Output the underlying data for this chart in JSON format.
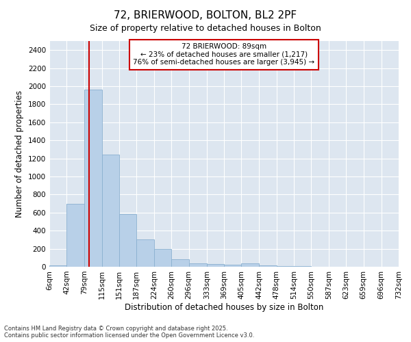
{
  "title": "72, BRIERWOOD, BOLTON, BL2 2PF",
  "subtitle": "Size of property relative to detached houses in Bolton",
  "xlabel": "Distribution of detached houses by size in Bolton",
  "ylabel": "Number of detached properties",
  "bar_color": "#b8d0e8",
  "bar_edge_color": "#8ab0d0",
  "vline_x": 89,
  "vline_color": "#cc0000",
  "annotation_title": "72 BRIERWOOD: 89sqm",
  "annotation_line2": "← 23% of detached houses are smaller (1,217)",
  "annotation_line3": "76% of semi-detached houses are larger (3,945) →",
  "annotation_box_color": "#cc0000",
  "footer": "Contains HM Land Registry data © Crown copyright and database right 2025.\nContains public sector information licensed under the Open Government Licence v3.0.",
  "bin_edges": [
    6,
    42,
    79,
    115,
    151,
    187,
    224,
    260,
    296,
    333,
    369,
    405,
    442,
    478,
    514,
    550,
    587,
    623,
    659,
    696,
    732
  ],
  "bin_labels": [
    "6sqm",
    "42sqm",
    "79sqm",
    "115sqm",
    "151sqm",
    "187sqm",
    "224sqm",
    "260sqm",
    "296sqm",
    "333sqm",
    "369sqm",
    "405sqm",
    "442sqm",
    "478sqm",
    "514sqm",
    "550sqm",
    "587sqm",
    "623sqm",
    "659sqm",
    "696sqm",
    "732sqm"
  ],
  "values": [
    15,
    700,
    1960,
    1240,
    580,
    305,
    200,
    80,
    40,
    30,
    25,
    35,
    15,
    5,
    5,
    3,
    2,
    1,
    1,
    0
  ],
  "ylim": [
    0,
    2500
  ],
  "yticks": [
    0,
    200,
    400,
    600,
    800,
    1000,
    1200,
    1400,
    1600,
    1800,
    2000,
    2200,
    2400
  ],
  "background_color": "#dde6f0",
  "figsize": [
    6.0,
    5.0
  ],
  "dpi": 100
}
